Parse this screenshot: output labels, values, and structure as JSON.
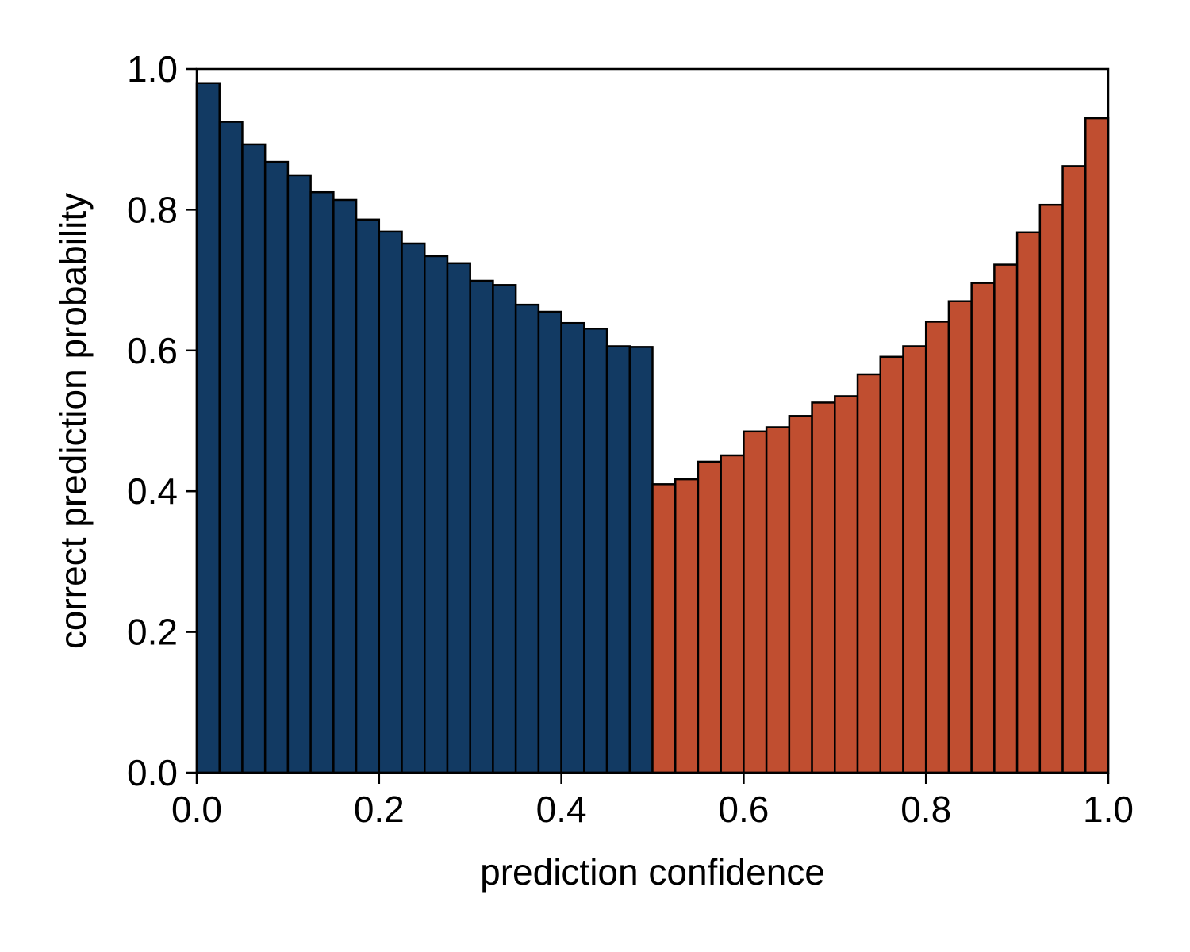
{
  "chart_data": {
    "type": "bar",
    "title": "",
    "xlabel": "prediction confidence",
    "ylabel": "correct prediction probability",
    "xlim": [
      0,
      1
    ],
    "ylim": [
      0,
      1
    ],
    "xticks": [
      "0.0",
      "0.2",
      "0.4",
      "0.6",
      "0.8",
      "1.0"
    ],
    "yticks": [
      "0.0",
      "0.2",
      "0.4",
      "0.6",
      "0.8",
      "1.0"
    ],
    "grid": false,
    "bin_width": 0.025,
    "bins_start": [
      0.0,
      0.025,
      0.05,
      0.075,
      0.1,
      0.125,
      0.15,
      0.175,
      0.2,
      0.225,
      0.25,
      0.275,
      0.3,
      0.325,
      0.35,
      0.375,
      0.4,
      0.425,
      0.45,
      0.475,
      0.5,
      0.525,
      0.55,
      0.575,
      0.6,
      0.625,
      0.65,
      0.675,
      0.7,
      0.725,
      0.75,
      0.775,
      0.8,
      0.825,
      0.85,
      0.875,
      0.9,
      0.925,
      0.95,
      0.975
    ],
    "values": [
      0.98,
      0.925,
      0.893,
      0.868,
      0.849,
      0.825,
      0.814,
      0.786,
      0.769,
      0.752,
      0.734,
      0.724,
      0.699,
      0.693,
      0.665,
      0.655,
      0.639,
      0.631,
      0.606,
      0.605,
      0.41,
      0.417,
      0.442,
      0.451,
      0.485,
      0.491,
      0.507,
      0.526,
      0.535,
      0.566,
      0.591,
      0.606,
      0.641,
      0.67,
      0.696,
      0.722,
      0.768,
      0.807,
      0.862,
      0.93
    ],
    "colors": {
      "low": "#123a63",
      "high": "#c04e30",
      "edge": "#000000",
      "split": 0.5
    }
  }
}
